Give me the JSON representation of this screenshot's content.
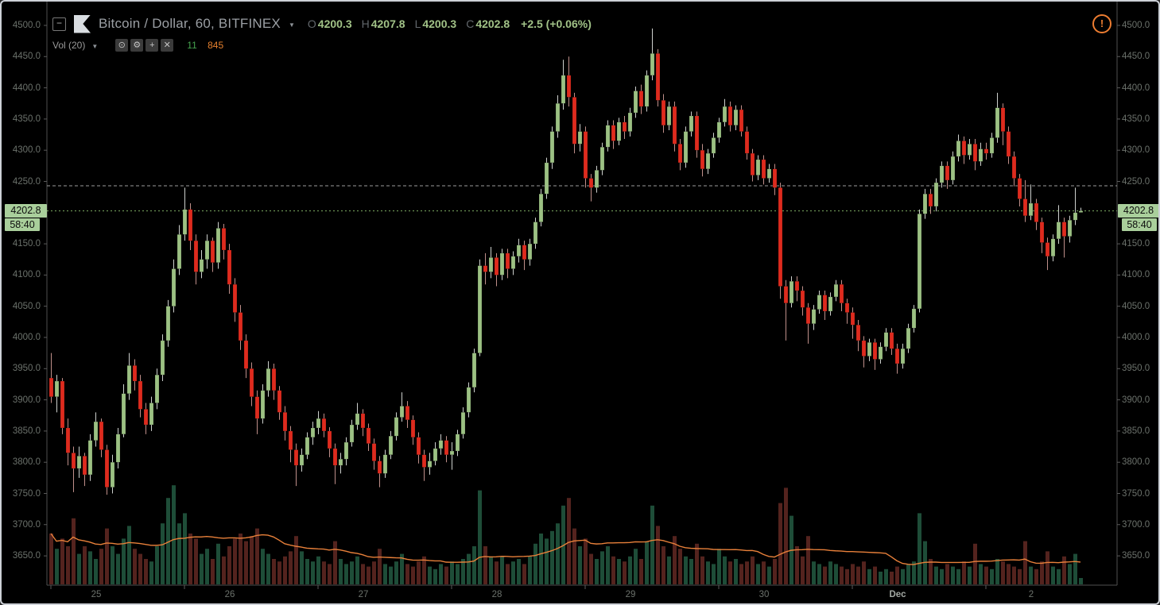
{
  "header": {
    "symbol_title": "Bitcoin / Dollar, 60, BITFINEX",
    "ohlc": {
      "o_label": "O",
      "o_value": "4200.3",
      "h_label": "H",
      "h_value": "4207.8",
      "l_label": "L",
      "l_value": "4200.3",
      "c_label": "C",
      "c_value": "4202.8",
      "change": "+2.5 (+0.06%)"
    },
    "indicator": {
      "label": "Vol (20)",
      "volume_value": "11",
      "ma_value": "845"
    }
  },
  "icons": {
    "collapse": "−",
    "dropdown_caret": "▼",
    "visibility": "⊙",
    "settings": "⚙",
    "add": "+",
    "delete": "✕",
    "warning": "!"
  },
  "price_badge": {
    "value": "4202.8",
    "countdown": "58:40"
  },
  "price_lines": [
    {
      "price": 4243,
      "color": "#9b9b9b",
      "dash": "4 3"
    },
    {
      "price": 4202.8,
      "color": "#7fae65",
      "dash": "2 3"
    }
  ],
  "colors": {
    "background": "#000000",
    "up_body": "#9cc183",
    "down_body": "#de2b1e",
    "up_wick": "#cdd0cd",
    "down_wick": "#bf8f8a",
    "vol_up": "#1e4d38",
    "vol_down": "#54231e",
    "vol_ma": "#e8803a",
    "axis_line": "#4f4f4f",
    "axis_text": "#6b716b",
    "badge_bg": "#a9cf9b",
    "accent_green": "#a1c287",
    "accent_orange": "#e6802e",
    "warning": "#ed7d31"
  },
  "axes": {
    "price_ticks": [
      4500,
      4450,
      4400,
      4350,
      4300,
      4250,
      4150,
      4100,
      4050,
      4000,
      3950,
      3900,
      3850,
      3800,
      3750,
      3700,
      3650
    ],
    "time_ticks": [
      {
        "label": "25",
        "index": 0
      },
      {
        "label": "26",
        "index": 24
      },
      {
        "label": "27",
        "index": 48
      },
      {
        "label": "28",
        "index": 72
      },
      {
        "label": "29",
        "index": 96
      },
      {
        "label": "30",
        "index": 120
      },
      {
        "label": "Dec",
        "index": 144,
        "month": true
      },
      {
        "label": "2",
        "index": 168
      }
    ]
  },
  "chart_data": {
    "type": "candlestick",
    "symbol": "Bitcoin / Dollar",
    "interval_minutes": 60,
    "exchange": "BITFINEX",
    "price_axis": {
      "min": 3650,
      "max": 4500,
      "step": 50
    },
    "x_axis": {
      "unit": "hour",
      "days": [
        "Nov 25",
        "Nov 26",
        "Nov 27",
        "Nov 28",
        "Nov 29",
        "Nov 30",
        "Dec 1",
        "Dec 2"
      ]
    },
    "current": {
      "open": 4200.3,
      "high": 4207.8,
      "low": 4200.3,
      "close": 4202.8,
      "change": 2.5,
      "change_pct": 0.06
    },
    "volume_ma_period": 20,
    "ohlc": [
      [
        3935,
        3975,
        3895,
        3905
      ],
      [
        3905,
        3940,
        3880,
        3930
      ],
      [
        3930,
        3935,
        3845,
        3855
      ],
      [
        3855,
        3870,
        3795,
        3815
      ],
      [
        3815,
        3825,
        3752,
        3790
      ],
      [
        3790,
        3825,
        3775,
        3810
      ],
      [
        3810,
        3815,
        3762,
        3780
      ],
      [
        3780,
        3845,
        3770,
        3835
      ],
      [
        3835,
        3880,
        3825,
        3865
      ],
      [
        3865,
        3870,
        3808,
        3820
      ],
      [
        3820,
        3828,
        3748,
        3760
      ],
      [
        3760,
        3812,
        3750,
        3800
      ],
      [
        3800,
        3855,
        3790,
        3845
      ],
      [
        3845,
        3925,
        3840,
        3910
      ],
      [
        3910,
        3975,
        3900,
        3955
      ],
      [
        3955,
        3965,
        3915,
        3930
      ],
      [
        3930,
        3940,
        3872,
        3885
      ],
      [
        3885,
        3895,
        3845,
        3860
      ],
      [
        3860,
        3905,
        3850,
        3895
      ],
      [
        3895,
        3950,
        3885,
        3940
      ],
      [
        3940,
        4005,
        3930,
        3995
      ],
      [
        3995,
        4060,
        3985,
        4050
      ],
      [
        4050,
        4125,
        4040,
        4110
      ],
      [
        4110,
        4180,
        4100,
        4165
      ],
      [
        4165,
        4240,
        4155,
        4205
      ],
      [
        4205,
        4215,
        4140,
        4155
      ],
      [
        4155,
        4165,
        4085,
        4105
      ],
      [
        4105,
        4140,
        4095,
        4125
      ],
      [
        4125,
        4165,
        4110,
        4155
      ],
      [
        4155,
        4160,
        4105,
        4120
      ],
      [
        4120,
        4185,
        4110,
        4175
      ],
      [
        4175,
        4182,
        4125,
        4140
      ],
      [
        4140,
        4150,
        4070,
        4085
      ],
      [
        4085,
        4095,
        4025,
        4040
      ],
      [
        4040,
        4052,
        3980,
        3995
      ],
      [
        3995,
        4005,
        3935,
        3950
      ],
      [
        3950,
        3960,
        3890,
        3905
      ],
      [
        3905,
        3915,
        3845,
        3870
      ],
      [
        3870,
        3925,
        3862,
        3915
      ],
      [
        3915,
        3962,
        3905,
        3950
      ],
      [
        3950,
        3958,
        3900,
        3915
      ],
      [
        3915,
        3922,
        3868,
        3880
      ],
      [
        3880,
        3890,
        3835,
        3850
      ],
      [
        3850,
        3858,
        3800,
        3820
      ],
      [
        3820,
        3830,
        3762,
        3795
      ],
      [
        3795,
        3822,
        3785,
        3812
      ],
      [
        3812,
        3848,
        3805,
        3840
      ],
      [
        3840,
        3865,
        3828,
        3855
      ],
      [
        3855,
        3882,
        3845,
        3870
      ],
      [
        3870,
        3878,
        3840,
        3850
      ],
      [
        3850,
        3856,
        3808,
        3822
      ],
      [
        3822,
        3830,
        3765,
        3795
      ],
      [
        3795,
        3815,
        3782,
        3805
      ],
      [
        3805,
        3840,
        3795,
        3832
      ],
      [
        3832,
        3868,
        3825,
        3860
      ],
      [
        3860,
        3895,
        3852,
        3878
      ],
      [
        3878,
        3885,
        3842,
        3855
      ],
      [
        3855,
        3862,
        3818,
        3830
      ],
      [
        3830,
        3838,
        3788,
        3802
      ],
      [
        3802,
        3810,
        3760,
        3782
      ],
      [
        3782,
        3820,
        3775,
        3812
      ],
      [
        3812,
        3850,
        3805,
        3842
      ],
      [
        3842,
        3880,
        3835,
        3872
      ],
      [
        3872,
        3912,
        3865,
        3890
      ],
      [
        3890,
        3898,
        3855,
        3868
      ],
      [
        3868,
        3875,
        3828,
        3840
      ],
      [
        3840,
        3848,
        3798,
        3812
      ],
      [
        3812,
        3820,
        3770,
        3792
      ],
      [
        3792,
        3815,
        3780,
        3802
      ],
      [
        3802,
        3832,
        3795,
        3822
      ],
      [
        3822,
        3845,
        3812,
        3835
      ],
      [
        3835,
        3842,
        3800,
        3812
      ],
      [
        3812,
        3832,
        3788,
        3818
      ],
      [
        3818,
        3852,
        3810,
        3845
      ],
      [
        3845,
        3888,
        3838,
        3880
      ],
      [
        3880,
        3928,
        3872,
        3920
      ],
      [
        3920,
        3982,
        3912,
        3975
      ],
      [
        3975,
        4125,
        3970,
        4115
      ],
      [
        4115,
        4135,
        4085,
        4105
      ],
      [
        4105,
        4145,
        4095,
        4128
      ],
      [
        4128,
        4135,
        4082,
        4100
      ],
      [
        4100,
        4142,
        4092,
        4135
      ],
      [
        4135,
        4142,
        4095,
        4110
      ],
      [
        4110,
        4138,
        4100,
        4130
      ],
      [
        4130,
        4158,
        4120,
        4148
      ],
      [
        4148,
        4155,
        4108,
        4125
      ],
      [
        4125,
        4158,
        4115,
        4150
      ],
      [
        4150,
        4192,
        4142,
        4185
      ],
      [
        4185,
        4238,
        4178,
        4230
      ],
      [
        4230,
        4288,
        4222,
        4280
      ],
      [
        4280,
        4338,
        4270,
        4330
      ],
      [
        4330,
        4388,
        4320,
        4375
      ],
      [
        4375,
        4445,
        4365,
        4420
      ],
      [
        4420,
        4450,
        4370,
        4385
      ],
      [
        4385,
        4392,
        4295,
        4310
      ],
      [
        4310,
        4342,
        4298,
        4330
      ],
      [
        4330,
        4338,
        4240,
        4255
      ],
      [
        4255,
        4262,
        4218,
        4240
      ],
      [
        4240,
        4275,
        4232,
        4268
      ],
      [
        4268,
        4312,
        4260,
        4305
      ],
      [
        4305,
        4348,
        4298,
        4340
      ],
      [
        4340,
        4348,
        4302,
        4315
      ],
      [
        4315,
        4352,
        4308,
        4345
      ],
      [
        4345,
        4355,
        4318,
        4330
      ],
      [
        4330,
        4368,
        4322,
        4360
      ],
      [
        4360,
        4402,
        4352,
        4395
      ],
      [
        4395,
        4405,
        4358,
        4370
      ],
      [
        4370,
        4428,
        4362,
        4420
      ],
      [
        4420,
        4495,
        4412,
        4455
      ],
      [
        4455,
        4462,
        4370,
        4380
      ],
      [
        4380,
        4390,
        4328,
        4340
      ],
      [
        4340,
        4378,
        4332,
        4370
      ],
      [
        4370,
        4378,
        4298,
        4310
      ],
      [
        4310,
        4318,
        4268,
        4280
      ],
      [
        4280,
        4338,
        4272,
        4330
      ],
      [
        4330,
        4362,
        4322,
        4355
      ],
      [
        4355,
        4362,
        4288,
        4300
      ],
      [
        4300,
        4310,
        4258,
        4270
      ],
      [
        4270,
        4302,
        4262,
        4295
      ],
      [
        4295,
        4328,
        4288,
        4320
      ],
      [
        4320,
        4352,
        4312,
        4345
      ],
      [
        4345,
        4382,
        4338,
        4370
      ],
      [
        4370,
        4378,
        4330,
        4340
      ],
      [
        4340,
        4372,
        4332,
        4365
      ],
      [
        4365,
        4372,
        4322,
        4330
      ],
      [
        4330,
        4338,
        4285,
        4295
      ],
      [
        4295,
        4302,
        4250,
        4260
      ],
      [
        4260,
        4292,
        4252,
        4285
      ],
      [
        4285,
        4292,
        4245,
        4255
      ],
      [
        4255,
        4278,
        4248,
        4270
      ],
      [
        4270,
        4278,
        4228,
        4240
      ],
      [
        4240,
        4248,
        4062,
        4082
      ],
      [
        4082,
        4092,
        3995,
        4055
      ],
      [
        4055,
        4098,
        4048,
        4090
      ],
      [
        4090,
        4098,
        4058,
        4075
      ],
      [
        4075,
        4082,
        4035,
        4048
      ],
      [
        4048,
        4055,
        3990,
        4022
      ],
      [
        4022,
        4052,
        4012,
        4045
      ],
      [
        4045,
        4075,
        4038,
        4068
      ],
      [
        4068,
        4075,
        4028,
        4042
      ],
      [
        4042,
        4072,
        4035,
        4065
      ],
      [
        4065,
        4092,
        4058,
        4085
      ],
      [
        4085,
        4092,
        4042,
        4055
      ],
      [
        4055,
        4062,
        4022,
        4040
      ],
      [
        4040,
        4048,
        3998,
        4020
      ],
      [
        4020,
        4028,
        3978,
        3995
      ],
      [
        3995,
        4002,
        3952,
        3970
      ],
      [
        3970,
        3998,
        3962,
        3992
      ],
      [
        3992,
        3998,
        3948,
        3965
      ],
      [
        3965,
        3992,
        3958,
        3985
      ],
      [
        3985,
        4015,
        3978,
        4008
      ],
      [
        4008,
        4015,
        3972,
        3982
      ],
      [
        3982,
        3990,
        3942,
        3958
      ],
      [
        3958,
        3990,
        3950,
        3982
      ],
      [
        3982,
        4022,
        3975,
        4015
      ],
      [
        4015,
        4052,
        4008,
        4046
      ],
      [
        4046,
        4205,
        4040,
        4198
      ],
      [
        4198,
        4238,
        4190,
        4230
      ],
      [
        4230,
        4238,
        4198,
        4210
      ],
      [
        4210,
        4255,
        4202,
        4248
      ],
      [
        4248,
        4282,
        4240,
        4275
      ],
      [
        4275,
        4282,
        4238,
        4252
      ],
      [
        4252,
        4298,
        4245,
        4290
      ],
      [
        4290,
        4325,
        4282,
        4315
      ],
      [
        4315,
        4322,
        4278,
        4292
      ],
      [
        4292,
        4318,
        4285,
        4310
      ],
      [
        4310,
        4318,
        4268,
        4282
      ],
      [
        4282,
        4312,
        4275,
        4302
      ],
      [
        4302,
        4312,
        4285,
        4295
      ],
      [
        4295,
        4328,
        4288,
        4320
      ],
      [
        4320,
        4392,
        4312,
        4368
      ],
      [
        4368,
        4375,
        4308,
        4330
      ],
      [
        4330,
        4338,
        4278,
        4290
      ],
      [
        4290,
        4298,
        4242,
        4255
      ],
      [
        4255,
        4262,
        4210,
        4222
      ],
      [
        4222,
        4252,
        4185,
        4195
      ],
      [
        4195,
        4245,
        4188,
        4215
      ],
      [
        4215,
        4222,
        4172,
        4185
      ],
      [
        4185,
        4192,
        4135,
        4152
      ],
      [
        4152,
        4160,
        4108,
        4130
      ],
      [
        4130,
        4165,
        4122,
        4158
      ],
      [
        4158,
        4212,
        4150,
        4185
      ],
      [
        4185,
        4192,
        4128,
        4162
      ],
      [
        4162,
        4195,
        4152,
        4188
      ],
      [
        4188,
        4240,
        4180,
        4200
      ],
      [
        4200.3,
        4207.8,
        4200.3,
        4202.8
      ]
    ],
    "volume": [
      2000,
      1400,
      1800,
      1500,
      2600,
      1200,
      1500,
      1300,
      1000,
      1400,
      2200,
      1500,
      1200,
      1800,
      2300,
      1400,
      1200,
      1000,
      900,
      1500,
      2400,
      3400,
      3900,
      2400,
      2800,
      2000,
      1800,
      1200,
      1400,
      1000,
      1600,
      1100,
      1500,
      1800,
      2000,
      1700,
      1900,
      2200,
      1400,
      1200,
      1000,
      900,
      1100,
      1300,
      1900,
      1300,
      1000,
      900,
      1100,
      900,
      800,
      1700,
      1000,
      800,
      900,
      1100,
      800,
      700,
      900,
      1400,
      800,
      700,
      900,
      1200,
      800,
      700,
      900,
      1100,
      700,
      600,
      800,
      700,
      900,
      800,
      1000,
      1200,
      1500,
      3700,
      1500,
      1100,
      900,
      1100,
      800,
      900,
      1000,
      800,
      1100,
      1600,
      2000,
      1800,
      2100,
      2400,
      3100,
      3400,
      2200,
      1500,
      1800,
      1200,
      1000,
      1300,
      1500,
      1100,
      1000,
      900,
      1100,
      1400,
      1000,
      1700,
      3100,
      2300,
      1500,
      1100,
      1900,
      1400,
      1100,
      1000,
      1600,
      1100,
      900,
      800,
      1400,
      1100,
      900,
      1000,
      800,
      900,
      1100,
      800,
      900,
      700,
      1000,
      3200,
      3800,
      2700,
      1500,
      1100,
      1900,
      900,
      800,
      700,
      900,
      800,
      700,
      600,
      800,
      700,
      900,
      600,
      700,
      500,
      600,
      500,
      700,
      600,
      800,
      900,
      2800,
      1700,
      1000,
      700,
      600,
      800,
      700,
      600,
      900,
      700,
      1600,
      800,
      700,
      600,
      1000,
      900,
      800,
      700,
      600,
      1700,
      700,
      600,
      900,
      1300,
      700,
      600,
      1100,
      800,
      1200,
      250
    ]
  }
}
